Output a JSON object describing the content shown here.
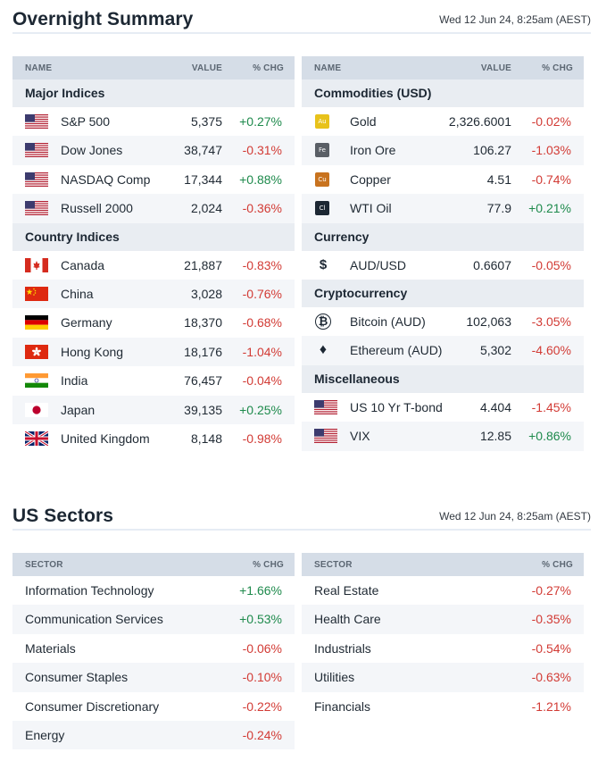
{
  "overnight": {
    "title": "Overnight Summary",
    "timestamp": "Wed 12 Jun 24, 8:25am (AEST)",
    "headers": {
      "name": "NAME",
      "value": "VALUE",
      "chg": "% CHG"
    },
    "left": {
      "major_label": "Major Indices",
      "major": [
        {
          "name": "S&P 500",
          "value": "5,375",
          "chg": "+0.27%"
        },
        {
          "name": "Dow Jones",
          "value": "38,747",
          "chg": "-0.31%"
        },
        {
          "name": "NASDAQ Comp",
          "value": "17,344",
          "chg": "+0.88%"
        },
        {
          "name": "Russell 2000",
          "value": "2,024",
          "chg": "-0.36%"
        }
      ],
      "country_label": "Country Indices",
      "country": [
        {
          "name": "Canada",
          "value": "21,887",
          "chg": "-0.83%"
        },
        {
          "name": "China",
          "value": "3,028",
          "chg": "-0.76%"
        },
        {
          "name": "Germany",
          "value": "18,370",
          "chg": "-0.68%"
        },
        {
          "name": "Hong Kong",
          "value": "18,176",
          "chg": "-1.04%"
        },
        {
          "name": "India",
          "value": "76,457",
          "chg": "-0.04%"
        },
        {
          "name": "Japan",
          "value": "39,135",
          "chg": "+0.25%"
        },
        {
          "name": "United Kingdom",
          "value": "8,148",
          "chg": "-0.98%"
        }
      ]
    },
    "right": {
      "commodities_label": "Commodities (USD)",
      "commodities": [
        {
          "name": "Gold",
          "symbol": "Au",
          "value": "2,326.6001",
          "chg": "-0.02%"
        },
        {
          "name": "Iron Ore",
          "symbol": "Fe",
          "value": "106.27",
          "chg": "-1.03%"
        },
        {
          "name": "Copper",
          "symbol": "Cu",
          "value": "4.51",
          "chg": "-0.74%"
        },
        {
          "name": "WTI Oil",
          "symbol": "Cl",
          "value": "77.9",
          "chg": "+0.21%"
        }
      ],
      "currency_label": "Currency",
      "currency": [
        {
          "name": "AUD/USD",
          "symbol": "$",
          "value": "0.6607",
          "chg": "-0.05%"
        }
      ],
      "crypto_label": "Cryptocurrency",
      "crypto": [
        {
          "name": "Bitcoin (AUD)",
          "symbol": "₿",
          "value": "102,063",
          "chg": "-3.05%"
        },
        {
          "name": "Ethereum (AUD)",
          "symbol": "♦",
          "value": "5,302",
          "chg": "-4.60%"
        }
      ],
      "misc_label": "Miscellaneous",
      "misc": [
        {
          "name": "US 10 Yr T-bond",
          "value": "4.404",
          "chg": "-1.45%"
        },
        {
          "name": "VIX",
          "value": "12.85",
          "chg": "+0.86%"
        }
      ]
    }
  },
  "sectors": {
    "title": "US Sectors",
    "timestamp": "Wed 12 Jun 24, 8:25am (AEST)",
    "headers": {
      "sector": "SECTOR",
      "chg": "% CHG"
    },
    "left": [
      {
        "name": "Information Technology",
        "chg": "+1.66%"
      },
      {
        "name": "Communication Services",
        "chg": "+0.53%"
      },
      {
        "name": "Materials",
        "chg": "-0.06%"
      },
      {
        "name": "Consumer Staples",
        "chg": "-0.10%"
      },
      {
        "name": "Consumer Discretionary",
        "chg": "-0.22%"
      },
      {
        "name": "Energy",
        "chg": "-0.24%"
      }
    ],
    "right": [
      {
        "name": "Real Estate",
        "chg": "-0.27%"
      },
      {
        "name": "Health Care",
        "chg": "-0.35%"
      },
      {
        "name": "Industrials",
        "chg": "-0.54%"
      },
      {
        "name": "Utilities",
        "chg": "-0.63%"
      },
      {
        "name": "Financials",
        "chg": "-1.21%"
      }
    ]
  },
  "colors": {
    "positive": "#1e8a4c",
    "negative": "#d23b35",
    "header_bg": "#d5dde7",
    "group_bg": "#e9edf2"
  }
}
